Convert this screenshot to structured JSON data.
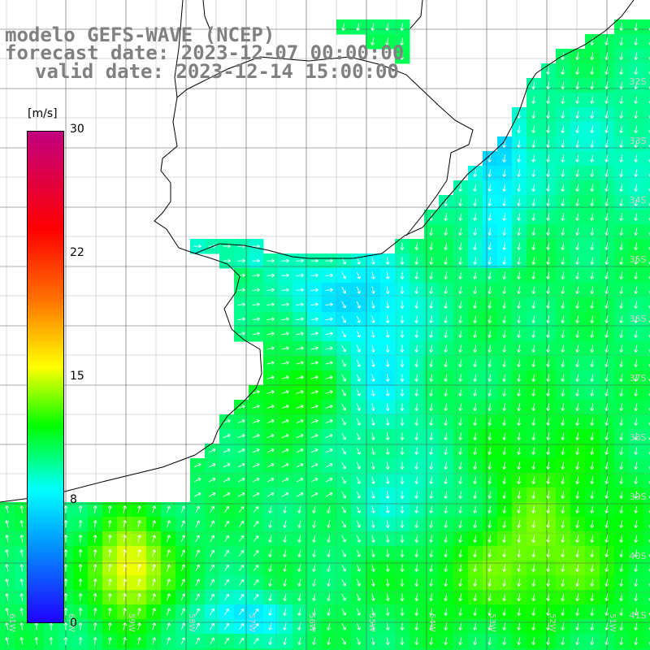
{
  "title": {
    "model": "modelo GEFS-WAVE (NCEP)",
    "forecast_date": "forecast date: 2023-12-07 00:00:00",
    "valid_date": "valid date: 2023-12-14 15:00:00"
  },
  "colorbar": {
    "units": "[m/s]",
    "ticks": [
      "30",
      "22",
      "15",
      "8",
      "0"
    ],
    "tick_values": [
      30,
      22,
      15,
      8,
      0
    ],
    "range": [
      0,
      30
    ],
    "colors": [
      "#1f00ff",
      "#00b8ff",
      "#00ffff",
      "#00ff00",
      "#ffff00",
      "#ff7000",
      "#ff0000",
      "#c0007f"
    ]
  },
  "grid": {
    "lat_labels": [
      "32S",
      "33S",
      "34S",
      "35S",
      "36S",
      "37S",
      "38S",
      "39S",
      "40S",
      "41S"
    ],
    "lon_labels": [
      "61W",
      "60W",
      "59W",
      "58W",
      "57W",
      "56W",
      "55W",
      "54W",
      "53W",
      "52W",
      "51W"
    ]
  },
  "field": {
    "variable": "wind speed",
    "units": "m/s"
  }
}
